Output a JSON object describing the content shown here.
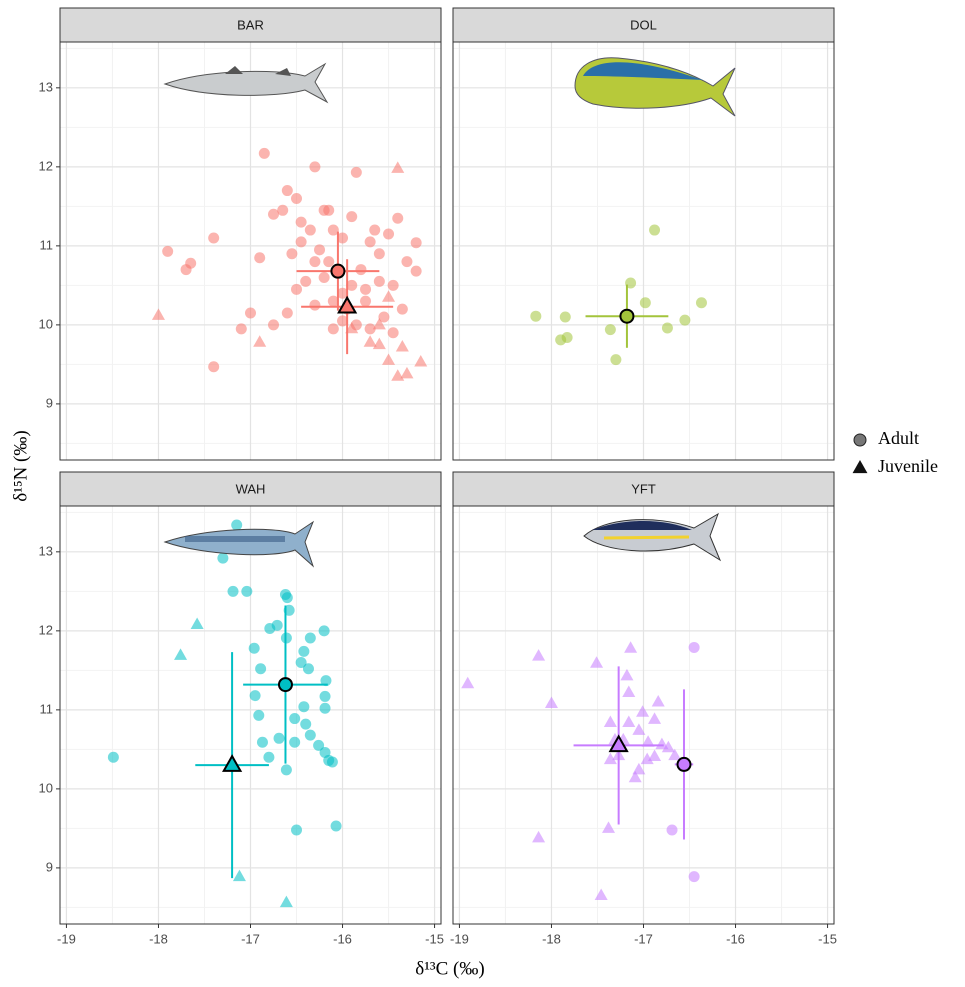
{
  "axis_labels": {
    "x": "δ¹³C (‰)",
    "y": "δ¹⁵N (‰)"
  },
  "chart_data": [
    {
      "type": "scatter",
      "title": "BAR",
      "color": "#f8766d",
      "xlim": [
        -19.07,
        -14.93
      ],
      "xticks": [
        -19,
        -18,
        -17,
        -16,
        -15
      ],
      "ylim": [
        8.29,
        13.58
      ],
      "yticks": [
        9,
        10,
        11,
        12,
        13
      ],
      "grid": true,
      "series": [
        {
          "name": "Adult",
          "shape": "circle",
          "x": [
            -17.9,
            -17.7,
            -17.65,
            -17.4,
            -17.0,
            -17.1,
            -17.4,
            -16.9,
            -16.75,
            -16.65,
            -16.6,
            -16.5,
            -16.45,
            -16.3,
            -16.2,
            -16.15,
            -16.1,
            -16.0,
            -15.9,
            -15.85,
            -15.7,
            -15.6,
            -15.5,
            -15.4,
            -15.3,
            -15.2,
            -15.2,
            -15.35,
            -15.45,
            -15.6,
            -15.75,
            -15.8,
            -15.9,
            -16.0,
            -16.1,
            -16.2,
            -16.3,
            -16.4,
            -16.5,
            -16.6,
            -16.55,
            -16.45,
            -16.35,
            -16.25,
            -16.15,
            -16.05,
            -15.95,
            -15.85,
            -15.7,
            -15.55,
            -15.45,
            -15.65,
            -16.0,
            -15.75,
            -16.85,
            -16.3,
            -16.75,
            -16.1
          ],
          "values": [
            10.93,
            10.7,
            10.78,
            11.1,
            10.15,
            9.95,
            9.47,
            10.85,
            11.4,
            11.45,
            11.7,
            11.6,
            11.3,
            12.0,
            11.45,
            11.45,
            11.2,
            11.1,
            11.37,
            11.93,
            11.05,
            10.9,
            11.15,
            11.35,
            10.8,
            11.04,
            10.68,
            10.2,
            10.5,
            10.55,
            10.3,
            10.7,
            10.5,
            10.4,
            10.3,
            10.6,
            10.8,
            10.55,
            10.45,
            10.15,
            10.9,
            11.05,
            11.2,
            10.95,
            10.8,
            10.65,
            10.2,
            10.0,
            9.95,
            10.1,
            9.9,
            11.2,
            10.05,
            10.45,
            12.17,
            10.25,
            10.0,
            9.95
          ],
          "mean": {
            "x": -16.05,
            "y": 10.68,
            "xerr": 0.45,
            "yerr": 0.5
          }
        },
        {
          "name": "Juvenile",
          "shape": "triangle",
          "x": [
            -18.0,
            -16.9,
            -15.4,
            -15.6,
            -15.5,
            -15.4,
            -15.3,
            -15.15,
            -15.7,
            -15.5,
            -15.6,
            -15.9,
            -15.35
          ],
          "values": [
            10.12,
            9.78,
            11.98,
            9.75,
            9.55,
            9.35,
            9.38,
            9.53,
            9.78,
            10.35,
            10.0,
            9.95,
            9.72
          ],
          "mean": {
            "x": -15.95,
            "y": 10.23,
            "xerr": 0.5,
            "yerr": 0.6
          }
        }
      ]
    },
    {
      "type": "scatter",
      "title": "DOL",
      "color": "#a3c43b",
      "xlim": [
        -19.07,
        -14.93
      ],
      "xticks": [
        -19,
        -18,
        -17,
        -16,
        -15
      ],
      "ylim": [
        8.29,
        13.58
      ],
      "yticks": [
        9,
        10,
        11,
        12,
        13
      ],
      "grid": true,
      "series": [
        {
          "name": "Adult",
          "shape": "circle",
          "x": [
            -18.17,
            -17.9,
            -17.83,
            -17.85,
            -17.36,
            -17.3,
            -17.14,
            -16.98,
            -16.88,
            -16.74,
            -16.55,
            -16.37
          ],
          "values": [
            10.11,
            9.81,
            9.84,
            10.1,
            9.94,
            9.56,
            10.53,
            10.28,
            11.2,
            9.96,
            10.06,
            10.28
          ],
          "mean": {
            "x": -17.18,
            "y": 10.11,
            "xerr": 0.45,
            "yerr": 0.4
          }
        }
      ]
    },
    {
      "type": "scatter",
      "title": "WAH",
      "color": "#00bfc4",
      "xlim": [
        -19.07,
        -14.93
      ],
      "xticks": [
        -19,
        -18,
        -17,
        -16,
        -15
      ],
      "ylim": [
        8.29,
        13.58
      ],
      "yticks": [
        9,
        10,
        11,
        12,
        13
      ],
      "grid": true,
      "series": [
        {
          "name": "Adult",
          "shape": "circle",
          "x": [
            -18.49,
            -17.15,
            -17.3,
            -17.19,
            -17.04,
            -16.96,
            -16.79,
            -16.71,
            -16.62,
            -16.6,
            -16.58,
            -16.61,
            -16.45,
            -16.42,
            -16.35,
            -16.37,
            -16.2,
            -16.18,
            -16.19,
            -16.19,
            -16.26,
            -16.19,
            -16.15,
            -16.11,
            -16.07,
            -16.5,
            -16.89,
            -16.91,
            -16.87,
            -16.8,
            -16.69,
            -16.61,
            -16.52,
            -16.42,
            -16.4,
            -16.52,
            -16.35,
            -16.95
          ],
          "values": [
            10.4,
            13.34,
            12.92,
            12.5,
            12.5,
            11.78,
            12.03,
            12.07,
            12.46,
            12.42,
            12.26,
            11.91,
            11.6,
            11.74,
            11.91,
            11.52,
            12.0,
            11.37,
            11.17,
            11.02,
            10.55,
            10.46,
            10.36,
            10.34,
            9.53,
            9.48,
            11.52,
            10.93,
            10.59,
            10.4,
            10.64,
            10.24,
            10.59,
            11.04,
            10.82,
            10.89,
            10.68,
            11.18
          ],
          "mean": {
            "x": -16.62,
            "y": 11.32,
            "xerr": 0.46,
            "yerr": 1.0
          }
        },
        {
          "name": "Juvenile",
          "shape": "triangle",
          "x": [
            -17.58,
            -17.76,
            -17.12,
            -16.61
          ],
          "values": [
            12.08,
            11.69,
            8.89,
            8.56
          ],
          "mean": {
            "x": -17.2,
            "y": 10.3,
            "xerr": 0.4,
            "yerr": 1.43
          }
        }
      ]
    },
    {
      "type": "scatter",
      "title": "YFT",
      "color": "#c77cff",
      "xlim": [
        -19.07,
        -14.93
      ],
      "xticks": [
        -19,
        -18,
        -17,
        -16,
        -15
      ],
      "ylim": [
        8.29,
        13.58
      ],
      "yticks": [
        9,
        10,
        11,
        12,
        13
      ],
      "grid": true,
      "series": [
        {
          "name": "Adult",
          "shape": "circle",
          "x": [
            -16.45,
            -16.69,
            -16.45
          ],
          "values": [
            11.79,
            9.48,
            8.89
          ],
          "mean": {
            "x": -16.56,
            "y": 10.31,
            "xerr": 0.1,
            "yerr": 0.95
          }
        },
        {
          "name": "Juvenile",
          "shape": "triangle",
          "x": [
            -18.91,
            -18.14,
            -18.0,
            -18.14,
            -17.51,
            -17.38,
            -17.46,
            -17.18,
            -17.14,
            -17.16,
            -17.36,
            -17.31,
            -17.27,
            -17.16,
            -17.05,
            -17.01,
            -16.95,
            -16.88,
            -16.84,
            -16.8,
            -17.05,
            -17.09,
            -16.96,
            -16.88,
            -16.73,
            -16.66,
            -17.36,
            -17.22
          ],
          "values": [
            11.33,
            11.68,
            11.08,
            9.38,
            11.59,
            9.5,
            8.65,
            11.43,
            11.78,
            11.22,
            10.84,
            10.62,
            10.42,
            10.84,
            10.74,
            10.97,
            10.59,
            10.88,
            11.1,
            10.56,
            10.24,
            10.14,
            10.37,
            10.41,
            10.52,
            10.42,
            10.37,
            10.62
          ],
          "mean": {
            "x": -17.27,
            "y": 10.55,
            "xerr": 0.49,
            "yerr": 1.0
          }
        }
      ]
    }
  ]
}
